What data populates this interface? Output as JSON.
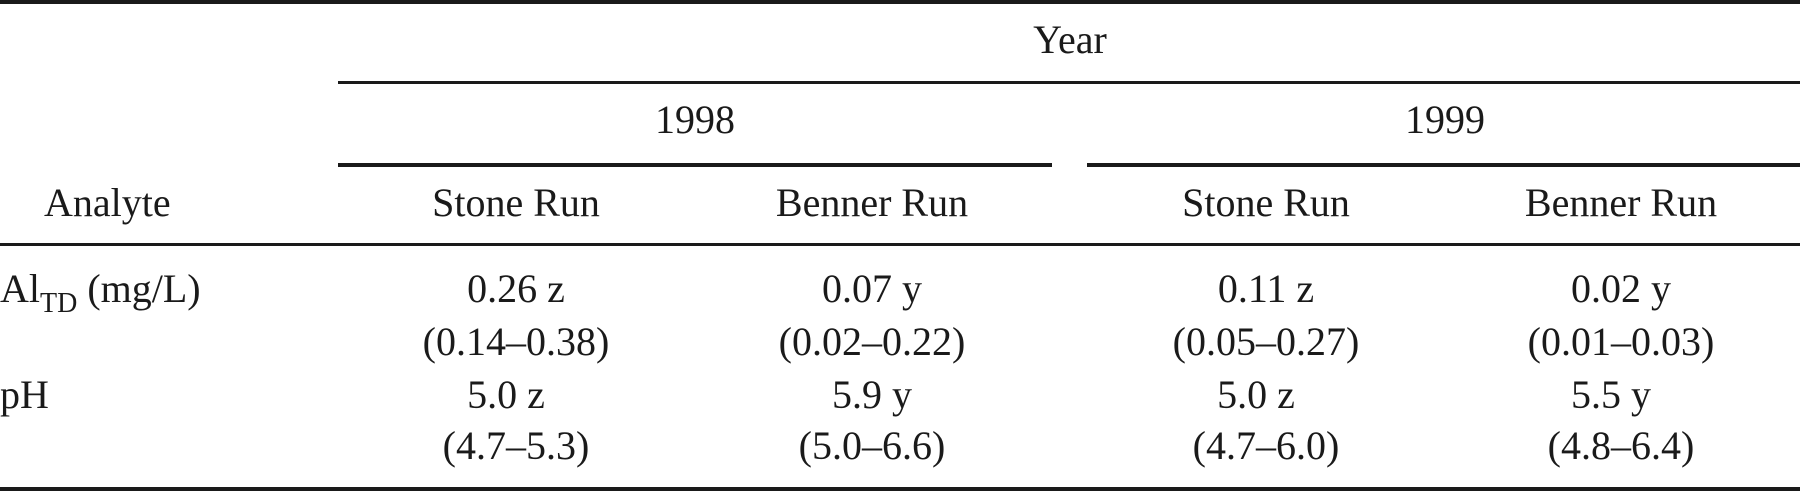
{
  "table": {
    "header": {
      "year": "Year",
      "years": [
        "1998",
        "1999"
      ],
      "analyte": "Analyte",
      "sites": [
        "Stone Run",
        "Benner Run",
        "Stone Run",
        "Benner Run"
      ]
    },
    "rows": [
      {
        "analyte_main": "Al",
        "analyte_sub": "TD",
        "analyte_unit": " (mg/L)",
        "values": [
          "0.26 z",
          "0.07 y",
          "0.11 z",
          "0.02 y"
        ],
        "ranges": [
          "(0.14–0.38)",
          "(0.02–0.22)",
          "(0.05–0.27)",
          "(0.01–0.03)"
        ]
      },
      {
        "analyte_main": "pH",
        "values": [
          "5.0 z",
          "5.9 y",
          "5.0 z",
          "5.5 y"
        ],
        "ranges": [
          "(4.7–5.3)",
          "(5.0–6.6)",
          "(4.7–6.0)",
          "(4.8–6.4)"
        ]
      }
    ]
  }
}
